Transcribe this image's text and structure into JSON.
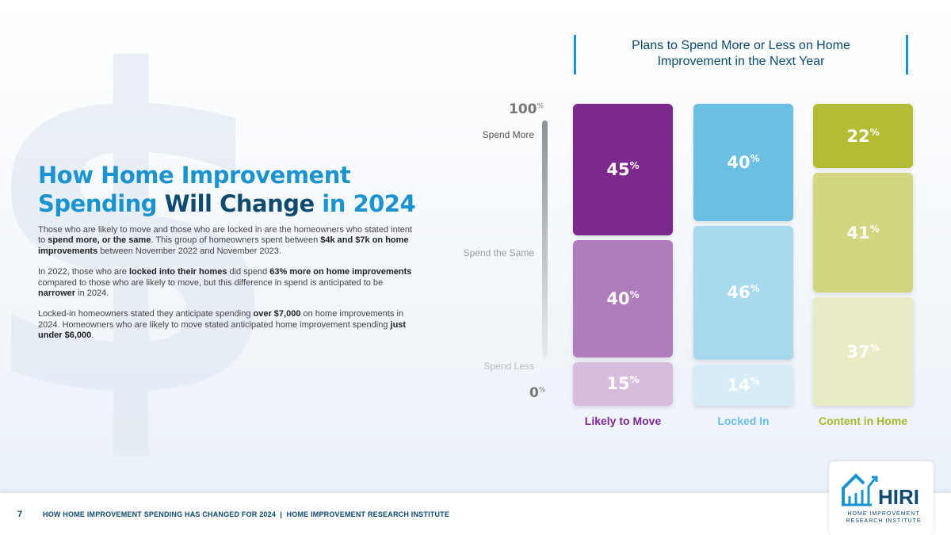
{
  "slide": {
    "title_part1": "How Home Improvement Spending",
    "title_part2": "Will Change",
    "title_part3": "in 2024",
    "paragraphs": [
      [
        "Those who are likely to move and those who are locked in are the homeowners who stated intent to ",
        "spend more, or the same",
        ". This group of homeowners spent between ",
        "$4k and $7k on home improvements",
        " between November 2022 and November 2023."
      ],
      [
        "In 2022, those who are ",
        "locked into their homes",
        " did spend ",
        "63% more on home improvements",
        " compared to those who are likely to move, but this difference in spend is anticipated to be ",
        "narrower",
        " in 2024."
      ],
      [
        "Locked-in homeowners stated they anticipate spending ",
        "over $7,000",
        " on home improvements in 2024. Homeowners who are likely to move stated anticipated home improvement spending ",
        "just under $6,000",
        "."
      ]
    ]
  },
  "chart_data": {
    "type": "bar",
    "stacked": true,
    "title": "Plans to Spend More or Less on Home Improvement in the Next Year",
    "ylim": [
      0,
      100
    ],
    "y_ticks": [
      "100",
      "0"
    ],
    "y_tick_unit": "%",
    "levels": [
      "Spend More",
      "Spend the Same",
      "Spend Less"
    ],
    "categories": [
      "Likely to Move",
      "Locked In",
      "Content in Home"
    ],
    "category_colors": [
      "#7b2a8c",
      "#6bbfe3",
      "#a8b52e"
    ],
    "series": [
      {
        "name": "Spend More",
        "values": [
          45,
          40,
          22
        ],
        "colors": [
          "#7b2a8c",
          "#6bbfe3",
          "#b4bc33"
        ]
      },
      {
        "name": "Spend the Same",
        "values": [
          40,
          46,
          41
        ],
        "colors": [
          "#b07cbb",
          "#a8d8ee",
          "#d2d681"
        ]
      },
      {
        "name": "Spend Less",
        "values": [
          15,
          14,
          37
        ],
        "colors": [
          "#d8bcdd",
          "#d6ecf6",
          "#e8ebc3"
        ]
      }
    ]
  },
  "footer": {
    "page": "7",
    "text": "HOW HOME IMPROVEMENT SPENDING HAS CHANGED FOR 2024  |  HOME IMPROVEMENT RESEARCH INSTITUTE"
  },
  "logo": {
    "name": "HIRI",
    "sub": "HOME IMPROVEMENT RESEARCH INSTITUTE"
  }
}
